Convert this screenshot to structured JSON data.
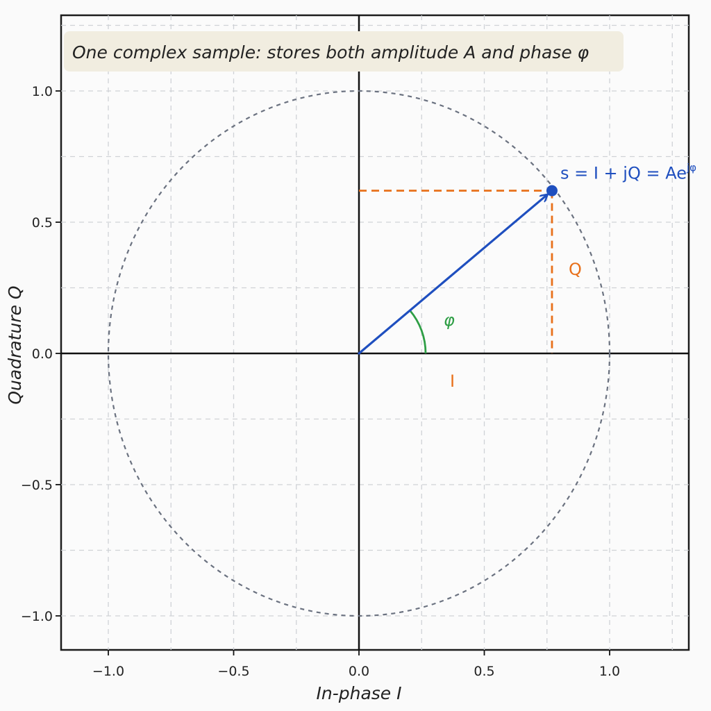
{
  "chart_data": {
    "type": "scatter",
    "title": "One complex sample: stores both amplitude A and phase φ",
    "xlabel": "In-phase I",
    "ylabel": "Quadrature Q",
    "xlim": [
      -1.0,
      1.0
    ],
    "ylim": [
      -1.0,
      1.0
    ],
    "xticks": [
      {
        "value": -1.0,
        "label": "−1.0"
      },
      {
        "value": -0.5,
        "label": "−0.5"
      },
      {
        "value": 0.0,
        "label": "0.0"
      },
      {
        "value": 0.5,
        "label": "0.5"
      },
      {
        "value": 1.0,
        "label": "1.0"
      }
    ],
    "yticks": [
      {
        "value": 1.0,
        "label": "1.0"
      },
      {
        "value": 0.5,
        "label": "0.5"
      },
      {
        "value": 0.0,
        "label": "0.0"
      },
      {
        "value": -0.5,
        "label": "−0.5"
      },
      {
        "value": -1.0,
        "label": "−1.0"
      }
    ],
    "grid": true,
    "unit_circle_radius": 1.0,
    "sample": {
      "I": 0.77,
      "Q": 0.62
    },
    "annotations": {
      "sample_label": "s = I + jQ = Ae",
      "sample_label_sup": "jφ",
      "phase_label": "φ",
      "i_label": "I",
      "q_label": "Q"
    },
    "colors": {
      "vector": "#1f4fbf",
      "projection": "#e8701a",
      "angle": "#2e9e45",
      "circle": "#6b7280",
      "grid": "#cfd2d6",
      "title_bg": "#f1ede0"
    }
  }
}
